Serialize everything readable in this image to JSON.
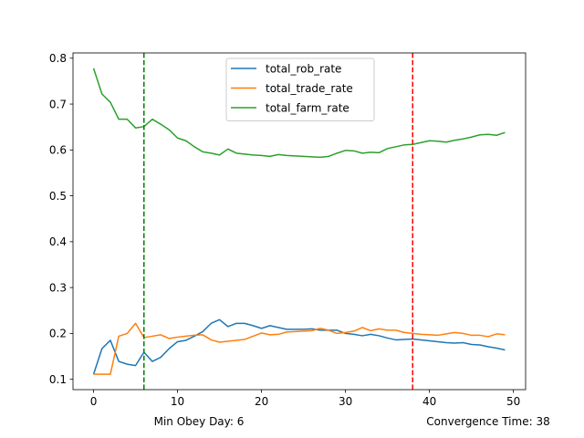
{
  "chart_data": {
    "type": "line",
    "xlim": [
      -2.45,
      51.45
    ],
    "ylim": [
      0.0775,
      0.8115
    ],
    "x_ticks": [
      0,
      10,
      20,
      30,
      40,
      50
    ],
    "y_ticks": [
      0.1,
      0.2,
      0.3,
      0.4,
      0.5,
      0.6,
      0.7,
      0.8
    ],
    "x_tick_labels": [
      "0",
      "10",
      "20",
      "30",
      "40",
      "50"
    ],
    "y_tick_labels": [
      "0.1",
      "0.2",
      "0.3",
      "0.4",
      "0.5",
      "0.6",
      "0.7",
      "0.8"
    ],
    "grid": false,
    "legend_position": "top-center",
    "x": [
      0,
      1,
      2,
      3,
      4,
      5,
      6,
      7,
      8,
      9,
      10,
      11,
      12,
      13,
      14,
      15,
      16,
      17,
      18,
      19,
      20,
      21,
      22,
      23,
      24,
      25,
      26,
      27,
      28,
      29,
      30,
      31,
      32,
      33,
      34,
      35,
      36,
      37,
      38,
      39,
      40,
      41,
      42,
      43,
      44,
      45,
      46,
      47,
      48,
      49
    ],
    "series": [
      {
        "name": "total_rob_rate",
        "color": "#1f77b4",
        "values": [
          0.111,
          0.167,
          0.185,
          0.139,
          0.133,
          0.13,
          0.159,
          0.139,
          0.148,
          0.167,
          0.182,
          0.185,
          0.194,
          0.204,
          0.222,
          0.23,
          0.215,
          0.222,
          0.222,
          0.217,
          0.211,
          0.217,
          0.213,
          0.209,
          0.209,
          0.209,
          0.21,
          0.207,
          0.207,
          0.207,
          0.2,
          0.198,
          0.195,
          0.198,
          0.195,
          0.19,
          0.186,
          0.187,
          0.188,
          0.186,
          0.184,
          0.182,
          0.18,
          0.179,
          0.18,
          0.176,
          0.175,
          0.171,
          0.168,
          0.164
        ]
      },
      {
        "name": "total_trade_rate",
        "color": "#ff7f0e",
        "values": [
          0.111,
          0.111,
          0.111,
          0.194,
          0.2,
          0.222,
          0.191,
          0.194,
          0.197,
          0.189,
          0.192,
          0.194,
          0.196,
          0.197,
          0.186,
          0.181,
          0.183,
          0.185,
          0.187,
          0.194,
          0.201,
          0.197,
          0.198,
          0.203,
          0.204,
          0.205,
          0.206,
          0.211,
          0.207,
          0.2,
          0.202,
          0.205,
          0.213,
          0.206,
          0.21,
          0.207,
          0.207,
          0.202,
          0.2,
          0.198,
          0.197,
          0.196,
          0.199,
          0.202,
          0.2,
          0.196,
          0.196,
          0.193,
          0.199,
          0.197
        ]
      },
      {
        "name": "total_farm_rate",
        "color": "#2ca02c",
        "values": [
          0.778,
          0.722,
          0.704,
          0.667,
          0.667,
          0.648,
          0.651,
          0.667,
          0.656,
          0.644,
          0.626,
          0.62,
          0.607,
          0.596,
          0.593,
          0.589,
          0.602,
          0.593,
          0.591,
          0.589,
          0.588,
          0.586,
          0.59,
          0.588,
          0.587,
          0.586,
          0.585,
          0.584,
          0.586,
          0.593,
          0.599,
          0.598,
          0.593,
          0.595,
          0.594,
          0.603,
          0.607,
          0.611,
          0.612,
          0.616,
          0.62,
          0.619,
          0.617,
          0.621,
          0.624,
          0.628,
          0.633,
          0.634,
          0.632,
          0.638
        ]
      }
    ],
    "vlines": [
      {
        "x": 6,
        "color": "#008000",
        "style": "dashed"
      },
      {
        "x": 38,
        "color": "#ff0000",
        "style": "dashed"
      }
    ]
  },
  "annotations": {
    "min_obey": "Min Obey Day: 6",
    "convergence": "Convergence Time: 38"
  }
}
